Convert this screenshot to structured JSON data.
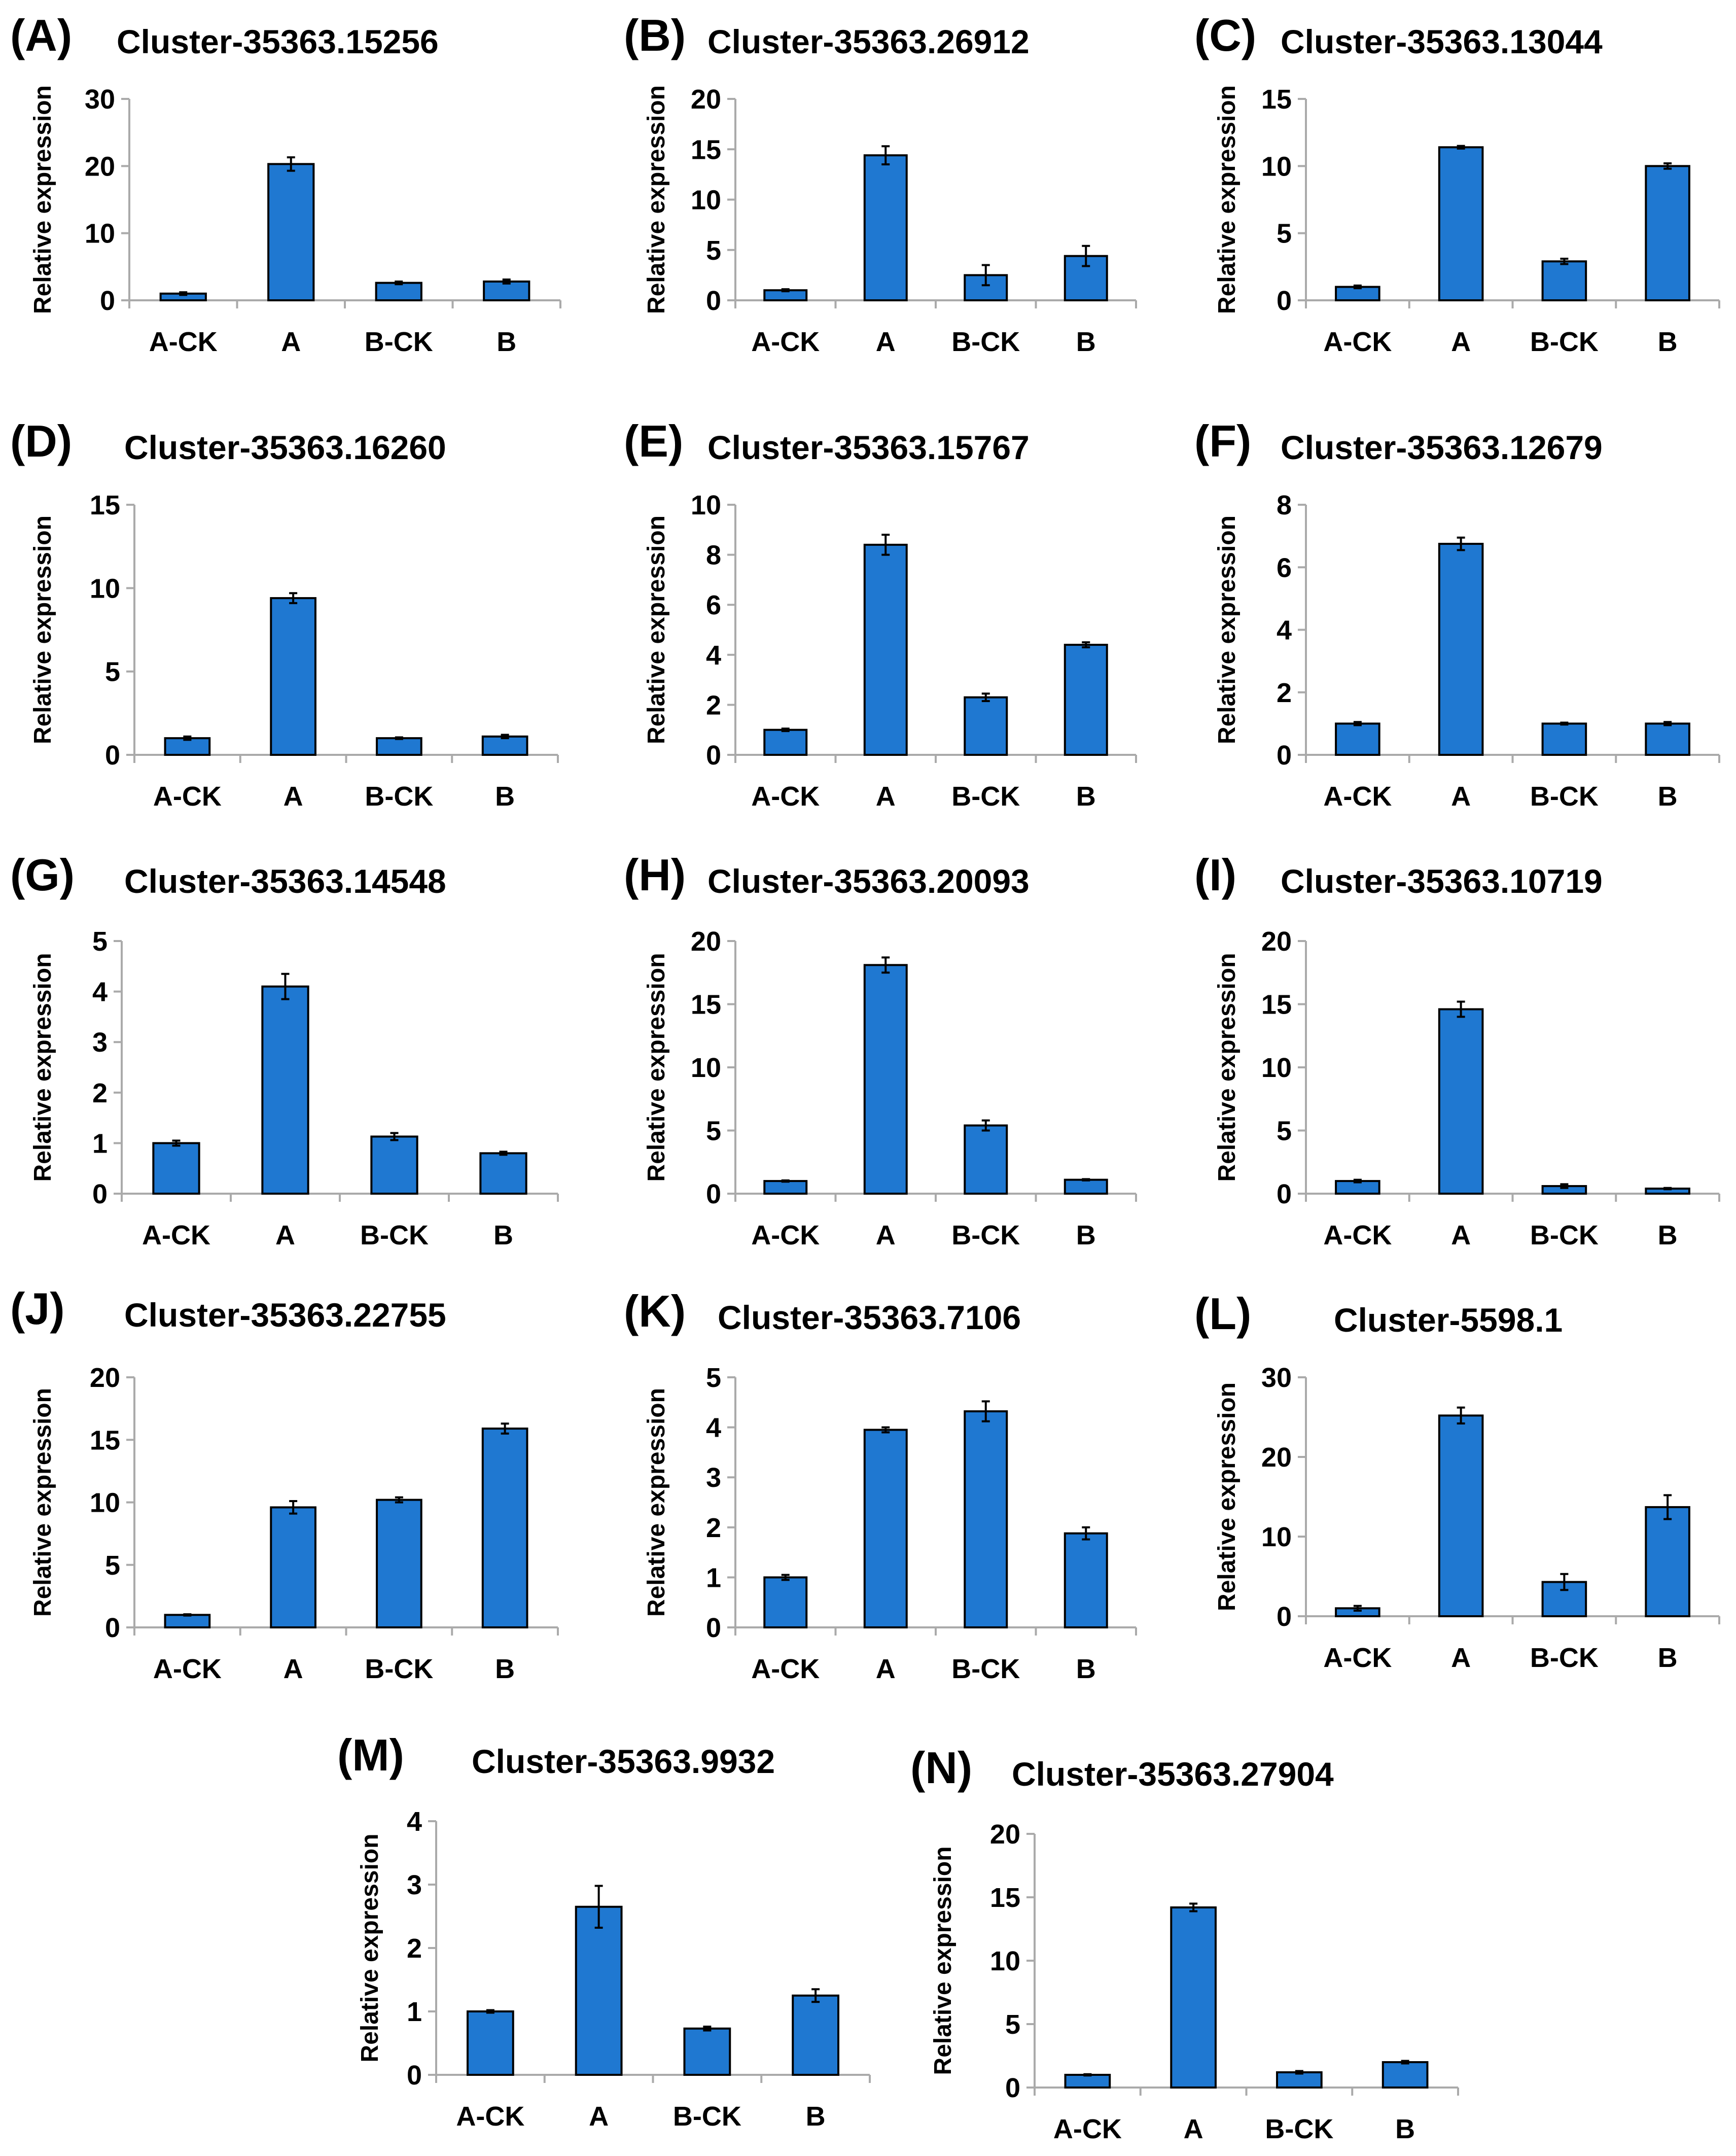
{
  "figure": {
    "colors": {
      "bar_fill": "#1f78d1",
      "bar_stroke": "#000000",
      "axis": "#aaaaaa"
    }
  },
  "chart_data": [
    {
      "panel": "(A)",
      "title": "Cluster-35363.15256",
      "type": "bar",
      "ylabel": "Relative expression",
      "categories": [
        "A-CK",
        "A",
        "B-CK",
        "B"
      ],
      "yticks": [
        0,
        10,
        20,
        30
      ],
      "ylim": [
        0,
        30
      ],
      "values": [
        1.0,
        20.3,
        2.6,
        2.8
      ],
      "errors": [
        0.2,
        1.0,
        0.2,
        0.3
      ]
    },
    {
      "panel": "(B)",
      "title": "Cluster-35363.26912",
      "type": "bar",
      "ylabel": "Relative expression",
      "categories": [
        "A-CK",
        "A",
        "B-CK",
        "B"
      ],
      "yticks": [
        0,
        5,
        10,
        15,
        20
      ],
      "ylim": [
        0,
        20
      ],
      "values": [
        1.0,
        14.4,
        2.5,
        4.4
      ],
      "errors": [
        0.1,
        0.9,
        1.0,
        1.0
      ]
    },
    {
      "panel": "(C)",
      "title": "Cluster-35363.13044",
      "type": "bar",
      "ylabel": "Relative expression",
      "categories": [
        "A-CK",
        "A",
        "B-CK",
        "B"
      ],
      "yticks": [
        0,
        5,
        10,
        15
      ],
      "ylim": [
        0,
        15
      ],
      "values": [
        1.0,
        11.4,
        2.9,
        10.0
      ],
      "errors": [
        0.1,
        0.1,
        0.2,
        0.2
      ]
    },
    {
      "panel": "(D)",
      "title": "Cluster-35363.16260",
      "type": "bar",
      "ylabel": "Relative expression",
      "categories": [
        "A-CK",
        "A",
        "B-CK",
        "B"
      ],
      "yticks": [
        0,
        5,
        10,
        15
      ],
      "ylim": [
        0,
        15
      ],
      "values": [
        1.0,
        9.4,
        1.0,
        1.1
      ],
      "errors": [
        0.1,
        0.3,
        0.05,
        0.1
      ]
    },
    {
      "panel": "(E)",
      "title": "Cluster-35363.15767",
      "type": "bar",
      "ylabel": "Relative expression",
      "categories": [
        "A-CK",
        "A",
        "B-CK",
        "B"
      ],
      "yticks": [
        0,
        2,
        4,
        6,
        8,
        10
      ],
      "ylim": [
        0,
        10
      ],
      "values": [
        1.0,
        8.4,
        2.3,
        4.4
      ],
      "errors": [
        0.05,
        0.4,
        0.15,
        0.1
      ]
    },
    {
      "panel": "(F)",
      "title": "Cluster-35363.12679",
      "type": "bar",
      "ylabel": "Relative expression",
      "categories": [
        "A-CK",
        "A",
        "B-CK",
        "B"
      ],
      "yticks": [
        0,
        2,
        4,
        6,
        8
      ],
      "ylim": [
        0,
        8
      ],
      "values": [
        1.0,
        6.75,
        1.0,
        1.0
      ],
      "errors": [
        0.05,
        0.2,
        0.03,
        0.05
      ]
    },
    {
      "panel": "(G)",
      "title": "Cluster-35363.14548",
      "type": "bar",
      "ylabel": "Relative expression",
      "categories": [
        "A-CK",
        "A",
        "B-CK",
        "B"
      ],
      "yticks": [
        0,
        1,
        2,
        3,
        4,
        5
      ],
      "ylim": [
        0,
        5
      ],
      "values": [
        1.0,
        4.1,
        1.13,
        0.8
      ],
      "errors": [
        0.05,
        0.25,
        0.07,
        0.03
      ]
    },
    {
      "panel": "(H)",
      "title": "Cluster-35363.20093",
      "type": "bar",
      "ylabel": "Relative expression",
      "categories": [
        "A-CK",
        "A",
        "B-CK",
        "B"
      ],
      "yticks": [
        0,
        5,
        10,
        15,
        20
      ],
      "ylim": [
        0,
        20
      ],
      "values": [
        1.0,
        18.1,
        5.4,
        1.1
      ],
      "errors": [
        0.05,
        0.6,
        0.4,
        0.05
      ]
    },
    {
      "panel": "(I)",
      "title": "Cluster-35363.10719",
      "type": "bar",
      "ylabel": "Relative expression",
      "categories": [
        "A-CK",
        "A",
        "B-CK",
        "B"
      ],
      "yticks": [
        0,
        5,
        10,
        15,
        20
      ],
      "ylim": [
        0,
        20
      ],
      "values": [
        1.0,
        14.6,
        0.6,
        0.4
      ],
      "errors": [
        0.1,
        0.6,
        0.15,
        0.05
      ]
    },
    {
      "panel": "(J)",
      "title": "Cluster-35363.22755",
      "type": "bar",
      "ylabel": "Relative expression",
      "categories": [
        "A-CK",
        "A",
        "B-CK",
        "B"
      ],
      "yticks": [
        0,
        5,
        10,
        15,
        20
      ],
      "ylim": [
        0,
        20
      ],
      "values": [
        1.0,
        9.6,
        10.2,
        15.9
      ],
      "errors": [
        0.05,
        0.5,
        0.2,
        0.4
      ]
    },
    {
      "panel": "(K)",
      "title": "Cluster-35363.7106",
      "type": "bar",
      "ylabel": "Relative expression",
      "categories": [
        "A-CK",
        "A",
        "B-CK",
        "B"
      ],
      "yticks": [
        0,
        1,
        2,
        3,
        4,
        5
      ],
      "ylim": [
        0,
        5
      ],
      "values": [
        1.0,
        3.95,
        4.32,
        1.88
      ],
      "errors": [
        0.05,
        0.05,
        0.2,
        0.12
      ]
    },
    {
      "panel": "(L)",
      "title": "Cluster-5598.1",
      "type": "bar",
      "ylabel": "Relative expression",
      "categories": [
        "A-CK",
        "A",
        "B-CK",
        "B"
      ],
      "yticks": [
        0,
        10,
        20,
        30
      ],
      "ylim": [
        0,
        30
      ],
      "values": [
        1.0,
        25.2,
        4.3,
        13.7
      ],
      "errors": [
        0.3,
        1.0,
        1.0,
        1.5
      ]
    },
    {
      "panel": "(M)",
      "title": "Cluster-35363.9932",
      "type": "bar",
      "ylabel": "Relative expression",
      "categories": [
        "A-CK",
        "A",
        "B-CK",
        "B"
      ],
      "yticks": [
        0,
        1,
        2,
        3,
        4
      ],
      "ylim": [
        0,
        4
      ],
      "values": [
        1.0,
        2.65,
        0.73,
        1.25
      ],
      "errors": [
        0.02,
        0.33,
        0.03,
        0.1
      ]
    },
    {
      "panel": "(N)",
      "title": "Cluster-35363.27904",
      "type": "bar",
      "ylabel": "Relative expression",
      "categories": [
        "A-CK",
        "A",
        "B-CK",
        "B"
      ],
      "yticks": [
        0,
        5,
        10,
        15,
        20
      ],
      "ylim": [
        0,
        20
      ],
      "values": [
        1.0,
        14.2,
        1.2,
        2.0
      ],
      "errors": [
        0.05,
        0.3,
        0.1,
        0.1
      ]
    }
  ]
}
